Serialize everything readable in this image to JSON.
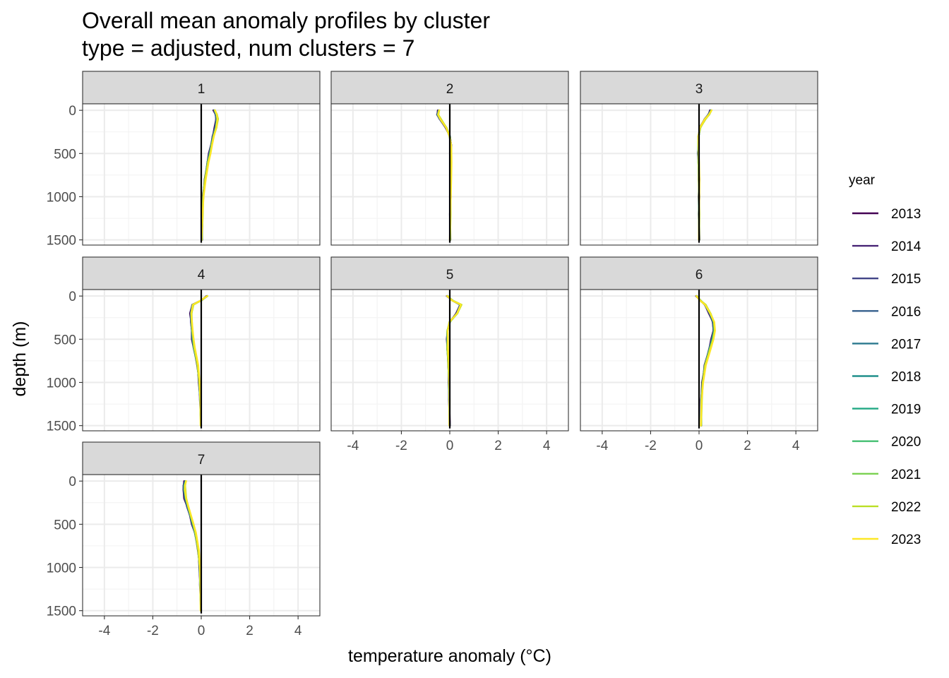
{
  "chart_data": {
    "type": "line",
    "title": "Overall mean anomaly profiles by cluster",
    "subtitle": "type = adjusted, num clusters = 7",
    "xlabel": "temperature anomaly (°C)",
    "ylabel": "depth (m)",
    "xlim": [
      -4.9,
      4.9
    ],
    "ylim": [
      -75,
      1560
    ],
    "y_reversed": true,
    "grid": true,
    "x_ticks": [
      -4,
      -2,
      0,
      2,
      4
    ],
    "x_tick_labels": [
      "-4",
      "-2",
      "0",
      "2",
      "4"
    ],
    "y_ticks": [
      0,
      500,
      1000,
      1500
    ],
    "y_tick_labels": [
      "0",
      "500",
      "1000",
      "1500"
    ],
    "reference_line_x": 0,
    "legend": {
      "title": "year",
      "position": "right",
      "entries": [
        "2013",
        "2014",
        "2015",
        "2016",
        "2017",
        "2018",
        "2019",
        "2020",
        "2021",
        "2022",
        "2023"
      ],
      "colors": [
        "#440154",
        "#482576",
        "#414487",
        "#35608D",
        "#2A788E",
        "#21908C",
        "#22A884",
        "#43BF71",
        "#7AD151",
        "#BBDF27",
        "#FDE725"
      ]
    },
    "depths": [
      0,
      50,
      100,
      200,
      300,
      400,
      500,
      600,
      800,
      1000,
      1200,
      1500
    ],
    "panels": [
      {
        "label": "1",
        "profile": [
          0.55,
          0.62,
          0.65,
          0.6,
          0.5,
          0.42,
          0.35,
          0.27,
          0.16,
          0.08,
          0.05,
          0.02
        ]
      },
      {
        "label": "2",
        "profile": [
          -0.45,
          -0.5,
          -0.4,
          -0.15,
          0.0,
          0.05,
          0.05,
          0.05,
          0.04,
          0.03,
          0.02,
          0.01
        ]
      },
      {
        "label": "3",
        "profile": [
          0.5,
          0.4,
          0.25,
          0.05,
          -0.02,
          -0.03,
          -0.03,
          -0.02,
          0.0,
          0.0,
          0.0,
          0.0
        ]
      },
      {
        "label": "4",
        "profile": [
          0.25,
          0.0,
          -0.35,
          -0.42,
          -0.4,
          -0.38,
          -0.35,
          -0.3,
          -0.15,
          -0.08,
          -0.04,
          -0.02
        ]
      },
      {
        "label": "5",
        "profile": [
          -0.1,
          0.1,
          0.45,
          0.3,
          0.0,
          -0.1,
          -0.1,
          -0.1,
          -0.05,
          -0.03,
          -0.02,
          -0.01
        ]
      },
      {
        "label": "6",
        "profile": [
          -0.1,
          0.05,
          0.25,
          0.45,
          0.6,
          0.62,
          0.55,
          0.45,
          0.25,
          0.15,
          0.1,
          0.08
        ]
      },
      {
        "label": "7",
        "profile": [
          -0.65,
          -0.7,
          -0.7,
          -0.65,
          -0.55,
          -0.45,
          -0.35,
          -0.25,
          -0.12,
          -0.06,
          -0.04,
          -0.02
        ]
      }
    ]
  }
}
